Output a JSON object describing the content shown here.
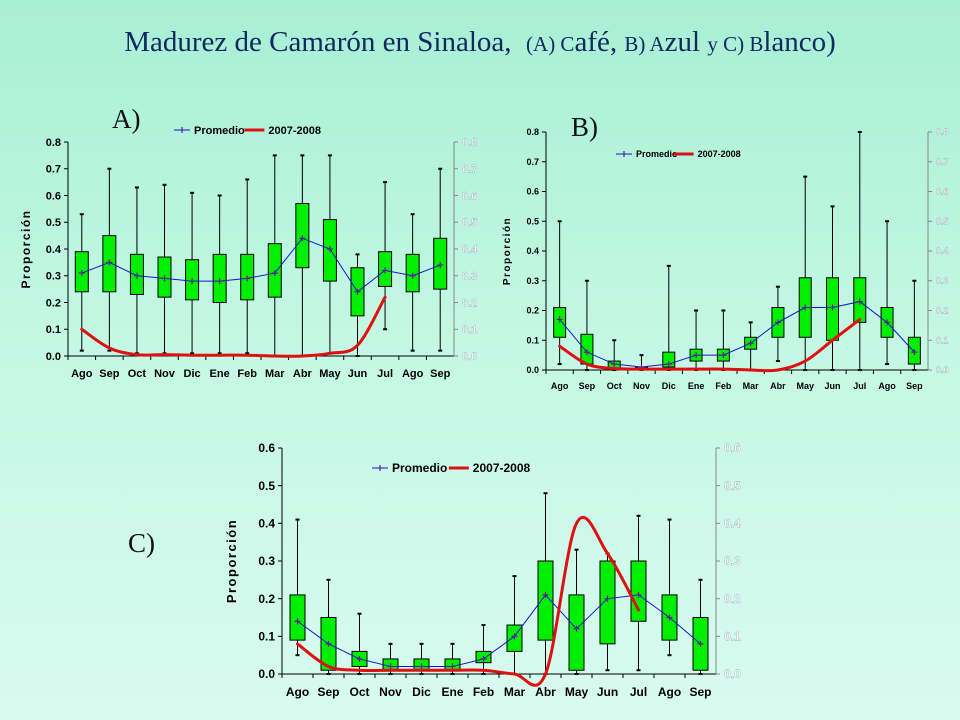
{
  "title": {
    "main": "Madurez de Camarón en Sinaloa,",
    "sub": [
      "(A) C",
      "afé, ",
      "B) A",
      "zul ",
      "y ",
      "C) B",
      "lanco",
      ")"
    ]
  },
  "colors": {
    "box_fill": "#00ee00",
    "promedio_line": "#1515c8",
    "season_line": "#dd1111",
    "right_axis_text": "#ffffff"
  },
  "chart_data": [
    {
      "id": "A",
      "panel_label": "A)",
      "type": "box",
      "categories": [
        "Ago",
        "Sep",
        "Oct",
        "Nov",
        "Dic",
        "Ene",
        "Feb",
        "Mar",
        "Abr",
        "May",
        "Jun",
        "Jul",
        "Ago",
        "Sep"
      ],
      "ylabel": "Proporción",
      "ylim": [
        0,
        0.8
      ],
      "yticks": [
        "0.0",
        "0.1",
        "0.2",
        "0.3",
        "0.4",
        "0.5",
        "0.6",
        "0.7",
        "0.8"
      ],
      "legend": {
        "position": "top",
        "entries": [
          "Promedio",
          "2007-2008"
        ]
      },
      "boxes": [
        {
          "min": 0.02,
          "q1": 0.24,
          "q3": 0.39,
          "max": 0.53
        },
        {
          "min": 0.02,
          "q1": 0.24,
          "q3": 0.45,
          "max": 0.7
        },
        {
          "min": 0.01,
          "q1": 0.23,
          "q3": 0.38,
          "max": 0.63
        },
        {
          "min": 0.01,
          "q1": 0.22,
          "q3": 0.37,
          "max": 0.64
        },
        {
          "min": 0.01,
          "q1": 0.21,
          "q3": 0.36,
          "max": 0.61
        },
        {
          "min": 0.01,
          "q1": 0.2,
          "q3": 0.38,
          "max": 0.6
        },
        {
          "min": 0.01,
          "q1": 0.21,
          "q3": 0.38,
          "max": 0.66
        },
        {
          "min": 0.0,
          "q1": 0.22,
          "q3": 0.42,
          "max": 0.75
        },
        {
          "min": 0.0,
          "q1": 0.33,
          "q3": 0.57,
          "max": 0.75
        },
        {
          "min": 0.01,
          "q1": 0.28,
          "q3": 0.51,
          "max": 0.75
        },
        {
          "min": 0.0,
          "q1": 0.15,
          "q3": 0.33,
          "max": 0.38
        },
        {
          "min": 0.1,
          "q1": 0.26,
          "q3": 0.39,
          "max": 0.65
        },
        {
          "min": 0.02,
          "q1": 0.24,
          "q3": 0.38,
          "max": 0.53
        },
        {
          "min": 0.02,
          "q1": 0.25,
          "q3": 0.44,
          "max": 0.7
        }
      ],
      "series": [
        {
          "name": "Promedio",
          "values": [
            0.31,
            0.35,
            0.3,
            0.29,
            0.28,
            0.28,
            0.29,
            0.31,
            0.44,
            0.4,
            0.24,
            0.32,
            0.3,
            0.34
          ]
        },
        {
          "name": "2007-2008",
          "values": [
            0.1,
            0.03,
            0.005,
            0.005,
            0.003,
            0.003,
            0.003,
            0.0,
            0.0,
            0.01,
            0.04,
            0.22
          ]
        }
      ]
    },
    {
      "id": "B",
      "panel_label": "B)",
      "type": "box",
      "categories": [
        "Ago",
        "Sep",
        "Oct",
        "Nov",
        "Dic",
        "Ene",
        "Feb",
        "Mar",
        "Abr",
        "May",
        "Jun",
        "Jul",
        "Ago",
        "Sep"
      ],
      "ylabel": "Proporción",
      "ylim": [
        0,
        0.8
      ],
      "yticks": [
        "0.0",
        "0.1",
        "0.2",
        "0.3",
        "0.4",
        "0.5",
        "0.6",
        "0.7",
        "0.8"
      ],
      "legend": {
        "position": "top",
        "entries": [
          "Promedio",
          "2007-2008"
        ]
      },
      "boxes": [
        {
          "min": 0.02,
          "q1": 0.11,
          "q3": 0.21,
          "max": 0.5
        },
        {
          "min": 0.0,
          "q1": 0.02,
          "q3": 0.12,
          "max": 0.3
        },
        {
          "min": 0.0,
          "q1": 0.0,
          "q3": 0.03,
          "max": 0.1
        },
        {
          "min": 0.0,
          "q1": 0.0,
          "q3": 0.01,
          "max": 0.05
        },
        {
          "min": 0.0,
          "q1": 0.01,
          "q3": 0.06,
          "max": 0.35
        },
        {
          "min": 0.0,
          "q1": 0.03,
          "q3": 0.07,
          "max": 0.2
        },
        {
          "min": 0.0,
          "q1": 0.03,
          "q3": 0.07,
          "max": 0.2
        },
        {
          "min": 0.0,
          "q1": 0.07,
          "q3": 0.11,
          "max": 0.16
        },
        {
          "min": 0.03,
          "q1": 0.11,
          "q3": 0.21,
          "max": 0.28
        },
        {
          "min": 0.0,
          "q1": 0.11,
          "q3": 0.31,
          "max": 0.65
        },
        {
          "min": 0.0,
          "q1": 0.1,
          "q3": 0.31,
          "max": 0.55
        },
        {
          "min": 0.0,
          "q1": 0.16,
          "q3": 0.31,
          "max": 0.8
        },
        {
          "min": 0.02,
          "q1": 0.11,
          "q3": 0.21,
          "max": 0.5
        },
        {
          "min": 0.0,
          "q1": 0.02,
          "q3": 0.11,
          "max": 0.3
        }
      ],
      "series": [
        {
          "name": "Promedio",
          "values": [
            0.17,
            0.06,
            0.02,
            0.01,
            0.02,
            0.05,
            0.05,
            0.09,
            0.16,
            0.21,
            0.21,
            0.23,
            0.16,
            0.06
          ]
        },
        {
          "name": "2007-2008",
          "values": [
            0.08,
            0.02,
            0.005,
            0.003,
            0.003,
            0.003,
            0.003,
            0.0,
            0.0,
            0.03,
            0.1,
            0.17
          ]
        }
      ]
    },
    {
      "id": "C",
      "panel_label": "C)",
      "type": "box",
      "categories": [
        "Ago",
        "Sep",
        "Oct",
        "Nov",
        "Dic",
        "Ene",
        "Feb",
        "Mar",
        "Abr",
        "May",
        "Jun",
        "Jul",
        "Ago",
        "Sep"
      ],
      "ylabel": "Proporción",
      "ylim": [
        0,
        0.6
      ],
      "yticks": [
        "0.0",
        "0.1",
        "0.2",
        "0.3",
        "0.4",
        "0.5",
        "0.6"
      ],
      "legend": {
        "position": "top",
        "entries": [
          "Promedio",
          "2007-2008"
        ]
      },
      "boxes": [
        {
          "min": 0.05,
          "q1": 0.09,
          "q3": 0.21,
          "max": 0.41
        },
        {
          "min": 0.0,
          "q1": 0.01,
          "q3": 0.15,
          "max": 0.25
        },
        {
          "min": 0.0,
          "q1": 0.02,
          "q3": 0.06,
          "max": 0.16
        },
        {
          "min": 0.0,
          "q1": 0.01,
          "q3": 0.04,
          "max": 0.08
        },
        {
          "min": 0.0,
          "q1": 0.01,
          "q3": 0.04,
          "max": 0.08
        },
        {
          "min": 0.0,
          "q1": 0.01,
          "q3": 0.04,
          "max": 0.08
        },
        {
          "min": 0.0,
          "q1": 0.03,
          "q3": 0.06,
          "max": 0.13
        },
        {
          "min": 0.0,
          "q1": 0.06,
          "q3": 0.13,
          "max": 0.26
        },
        {
          "min": 0.0,
          "q1": 0.09,
          "q3": 0.3,
          "max": 0.48
        },
        {
          "min": 0.0,
          "q1": 0.01,
          "q3": 0.21,
          "max": 0.33
        },
        {
          "min": 0.01,
          "q1": 0.08,
          "q3": 0.3,
          "max": 0.32
        },
        {
          "min": 0.01,
          "q1": 0.14,
          "q3": 0.3,
          "max": 0.42
        },
        {
          "min": 0.05,
          "q1": 0.09,
          "q3": 0.21,
          "max": 0.41
        },
        {
          "min": 0.0,
          "q1": 0.01,
          "q3": 0.15,
          "max": 0.25
        }
      ],
      "series": [
        {
          "name": "Promedio",
          "values": [
            0.14,
            0.08,
            0.04,
            0.02,
            0.02,
            0.02,
            0.04,
            0.1,
            0.21,
            0.12,
            0.2,
            0.21,
            0.15,
            0.08
          ]
        },
        {
          "name": "2007-2008",
          "values": [
            0.08,
            0.02,
            0.01,
            0.01,
            0.01,
            0.01,
            0.01,
            0.0,
            0.0,
            0.4,
            0.32,
            0.17
          ]
        }
      ]
    }
  ]
}
